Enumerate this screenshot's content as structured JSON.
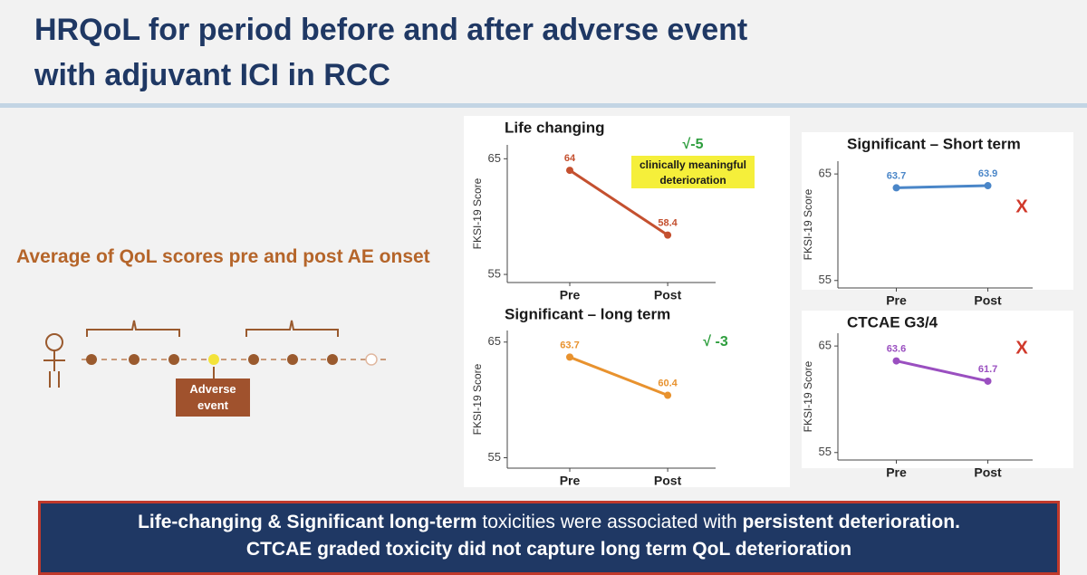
{
  "title": [
    "HRQoL for period before and after adverse event",
    "with adjuvant ICI in RCC"
  ],
  "left": {
    "heading": "Average of QoL scores pre and post AE onset",
    "event_label": "Adverse event"
  },
  "chart_data": [
    {
      "type": "line",
      "title": "Life changing",
      "ylabel": "FKSI-19 Score",
      "categories": [
        "Pre",
        "Post"
      ],
      "series": [
        {
          "color": "#c4502f",
          "values": [
            64,
            58.4
          ]
        }
      ],
      "ylim": [
        54.3,
        66.2
      ],
      "yticks": [
        55,
        65
      ],
      "annotations": [
        {
          "text": "√-5",
          "color": "#2e9e3e"
        },
        {
          "text": [
            "clinically meaningful",
            "deterioration"
          ],
          "color": "#1a1a1a",
          "background": "#f5ef3a"
        }
      ]
    },
    {
      "type": "line",
      "title": "Significant – long term",
      "ylabel": "FKSI-19 Score",
      "categories": [
        "Pre",
        "Post"
      ],
      "series": [
        {
          "color": "#e8922e",
          "values": [
            63.7,
            60.4
          ]
        }
      ],
      "ylim": [
        54.1,
        66.0
      ],
      "yticks": [
        55,
        65
      ],
      "annotations": [
        {
          "text": "√ -3",
          "color": "#2e9e3e"
        }
      ]
    },
    {
      "type": "line",
      "title": "Significant – Short term",
      "ylabel": "FKSI-19 Score",
      "categories": [
        "Pre",
        "Post"
      ],
      "series": [
        {
          "color": "#4a86c8",
          "values": [
            63.7,
            63.9
          ]
        }
      ],
      "ylim": [
        54.3,
        66.2
      ],
      "yticks": [
        55,
        65
      ],
      "annotations": [
        {
          "text": "X",
          "color": "#d0392b"
        }
      ]
    },
    {
      "type": "line",
      "title": "CTCAE G3/4",
      "ylabel": "FKSI-19 Score",
      "categories": [
        "Pre",
        "Post"
      ],
      "series": [
        {
          "color": "#9a4fc0",
          "values": [
            63.6,
            61.7
          ]
        }
      ],
      "ylim": [
        54.3,
        66.2
      ],
      "yticks": [
        55,
        65
      ],
      "annotations": [
        {
          "text": "X",
          "color": "#d0392b"
        }
      ]
    }
  ],
  "footer": {
    "line1": [
      "Life-changing & Significant long-term",
      " toxicities were associated with ",
      "persistent deterioration."
    ],
    "line2": "CTCAE graded toxicity did not capture long term QoL deterioration"
  }
}
